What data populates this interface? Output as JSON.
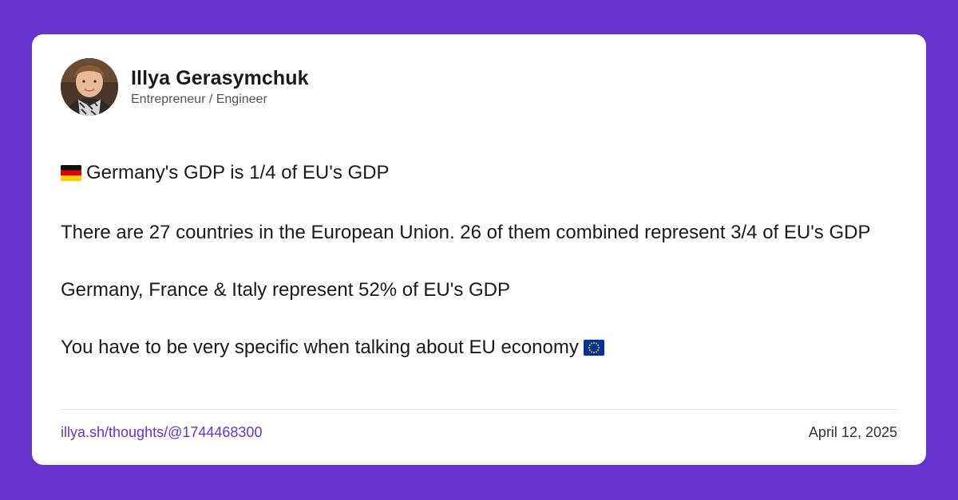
{
  "author": {
    "name": "Illya Gerasymchuk",
    "role": "Entrepreneur / Engineer"
  },
  "post": {
    "paragraphs": [
      "Germany's GDP is 1/4 of EU's GDP",
      "There are 27 countries in the European Union. 26 of them combined represent 3/4 of EU's GDP",
      "Germany, France & Italy represent 52% of EU's GDP",
      "You have to be very specific when talking about EU economy"
    ],
    "icons": [
      "germany-flag-icon",
      "eu-flag-icon"
    ]
  },
  "footer": {
    "link": "illya.sh/thoughts/@1744468300",
    "date": "April 12, 2025"
  },
  "colors": {
    "background": "#6633cc",
    "card": "#ffffff",
    "link": "#6633cc",
    "text": "#1a1a1a"
  }
}
